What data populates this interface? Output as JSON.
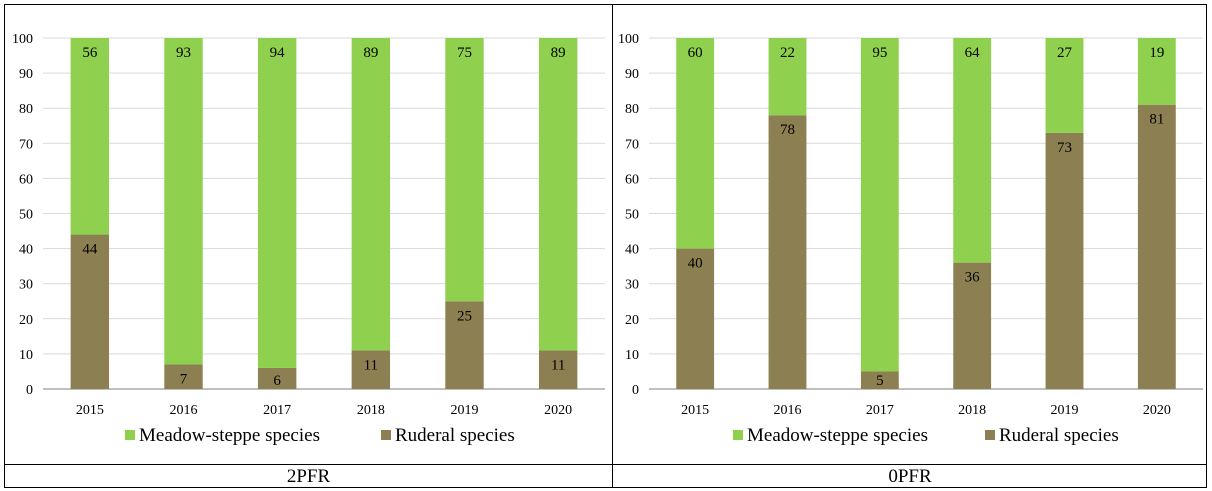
{
  "colors": {
    "meadow": "#8fd14f",
    "ruderal": "#8c8052",
    "grid": "#d9d9d9",
    "axis": "#808080"
  },
  "chart_data": [
    {
      "type": "bar",
      "stacked": true,
      "panel_label": "2PFR",
      "categories": [
        "2015",
        "2016",
        "2017",
        "2018",
        "2019",
        "2020"
      ],
      "series": [
        {
          "name": "Ruderal species",
          "values": [
            44,
            7,
            6,
            11,
            25,
            11
          ]
        },
        {
          "name": "Meadow-steppe species",
          "values": [
            56,
            93,
            94,
            89,
            75,
            89
          ]
        }
      ],
      "ylim": [
        0,
        100
      ],
      "yticks": [
        "0",
        "10",
        "20",
        "30",
        "40",
        "50",
        "60",
        "70",
        "80",
        "90",
        "100"
      ],
      "grid": true,
      "legend_position": "bottom",
      "legend": [
        "Meadow-steppe species",
        "Ruderal species"
      ]
    },
    {
      "type": "bar",
      "stacked": true,
      "panel_label": "0PFR",
      "categories": [
        "2015",
        "2016",
        "2017",
        "2018",
        "2019",
        "2020"
      ],
      "series": [
        {
          "name": "Ruderal species",
          "values": [
            40,
            78,
            5,
            36,
            73,
            81
          ]
        },
        {
          "name": "Meadow-steppe species",
          "values": [
            60,
            22,
            95,
            64,
            27,
            19
          ]
        }
      ],
      "ylim": [
        0,
        100
      ],
      "yticks": [
        "0",
        "10",
        "20",
        "30",
        "40",
        "50",
        "60",
        "70",
        "80",
        "90",
        "100"
      ],
      "grid": true,
      "legend_position": "bottom",
      "legend": [
        "Meadow-steppe species",
        "Ruderal species"
      ]
    }
  ]
}
